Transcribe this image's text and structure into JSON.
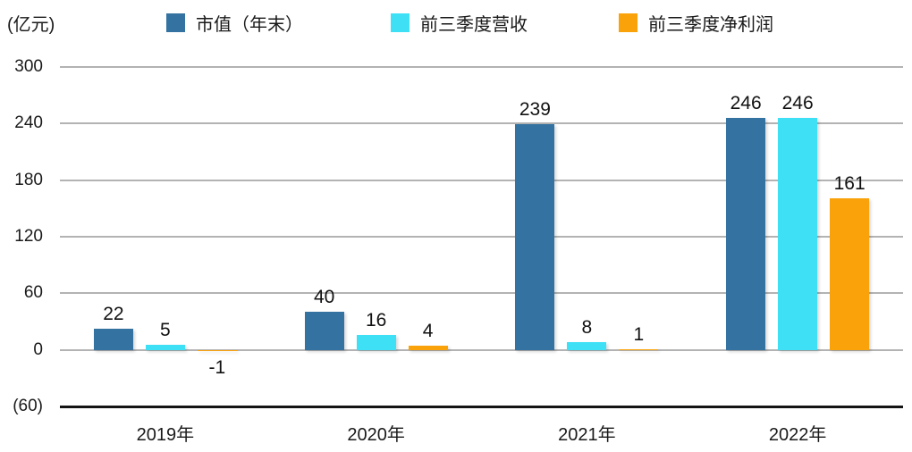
{
  "chart_data": {
    "type": "bar",
    "title": "",
    "unit_label": "(亿元)",
    "categories": [
      "2019年",
      "2020年",
      "2021年",
      "2022年"
    ],
    "series": [
      {
        "name": "市值（年末）",
        "color": "#3473A1",
        "values": [
          22,
          40,
          239,
          246
        ]
      },
      {
        "name": "前三季度营收",
        "color": "#3EE0F5",
        "values": [
          5,
          16,
          8,
          246
        ]
      },
      {
        "name": "前三季度净利润",
        "color": "#FAA20A",
        "values": [
          -1,
          4,
          1,
          161
        ]
      }
    ],
    "y_ticks": [
      300,
      240,
      180,
      120,
      60,
      0,
      -60
    ],
    "y_tick_labels": [
      "300",
      "240",
      "180",
      "120",
      "60",
      "0",
      "(60)"
    ],
    "ylim": [
      -60,
      300
    ],
    "grid": true,
    "legend_position": "top",
    "colors": {
      "grid": "#b3b3b3",
      "axis": "#141414",
      "text": "#1a1a1a"
    }
  }
}
